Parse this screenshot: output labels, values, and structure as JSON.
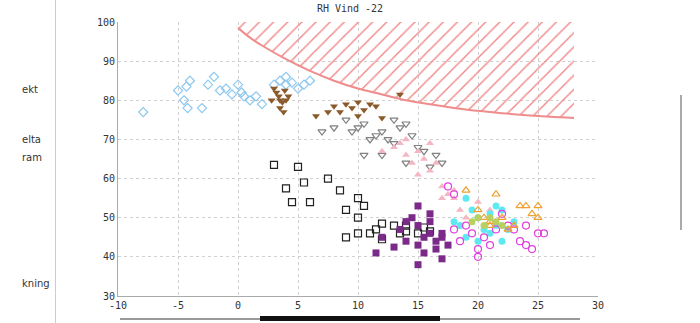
{
  "sidebar": [
    "ekt",
    "elta",
    "ram",
    "kning"
  ],
  "chart_data": {
    "type": "scatter",
    "title": "RH Vind -22",
    "xlim": [
      -10,
      30
    ],
    "xticks": [
      -10,
      -5,
      0,
      5,
      10,
      15,
      20,
      25,
      30
    ],
    "ylim": [
      30,
      100
    ],
    "yticks": [
      30,
      40,
      50,
      60,
      70,
      80,
      90,
      100
    ],
    "grid": true,
    "series": [
      {
        "type": "area",
        "color": "#f08c8c",
        "x": [
          0,
          1,
          2,
          4,
          6,
          8,
          10,
          12,
          14,
          16,
          18,
          20,
          22,
          24,
          26,
          28
        ],
        "values": [
          98.5,
          96,
          94,
          90.5,
          87.5,
          85,
          83,
          81.5,
          80,
          79,
          78,
          77.3,
          76.7,
          76.2,
          75.8,
          75.5
        ]
      },
      {
        "color": "#8ec8f0",
        "marker": "diamond-open",
        "x": [
          -7.9,
          -5,
          -4.5,
          -4.3,
          -4,
          -4.2,
          -3,
          -2.5,
          -2,
          -1.5,
          -1,
          -0.5,
          0,
          0.3,
          0.5,
          1,
          1.5,
          2,
          3,
          3.5,
          4,
          4,
          4.5,
          5,
          5.5,
          6
        ],
        "values": [
          77,
          82.5,
          80,
          83.5,
          85,
          78,
          78,
          84,
          86,
          82.5,
          83,
          81.5,
          84,
          82,
          81,
          80,
          81,
          79,
          84,
          85,
          84,
          86,
          84.5,
          83,
          84,
          85
        ]
      },
      {
        "color": "#8b5a2b",
        "marker": "triangle-down",
        "x": [
          3,
          3.2,
          3.4,
          3.5,
          3.7,
          3.5,
          3.8,
          3.9,
          4.2,
          4,
          2.8,
          6.5,
          7.5,
          8,
          8.5,
          9,
          9.5,
          10,
          10.5,
          11,
          11.5,
          12,
          13.5,
          10
        ],
        "values": [
          83,
          82,
          81,
          80,
          79.5,
          78,
          77,
          82.5,
          81,
          80,
          80,
          76,
          77,
          78.5,
          77,
          79,
          78,
          79.5,
          77.5,
          79,
          78.5,
          75.5,
          81.5,
          76
        ]
      },
      {
        "color": "#808080",
        "marker": "triangle-down-open",
        "x": [
          7,
          8,
          9,
          9.5,
          10,
          10.5,
          11,
          11.5,
          12,
          12.5,
          13,
          13.5,
          14,
          14.5,
          15,
          15.5,
          13,
          12,
          10.5,
          14,
          16,
          16.5,
          17
        ],
        "values": [
          72,
          73,
          75,
          72,
          73,
          74,
          70,
          71,
          72,
          70,
          69,
          73,
          74,
          71,
          68,
          67,
          75,
          66,
          66,
          64,
          63,
          66,
          64
        ]
      },
      {
        "color": "#f4b6c2",
        "marker": "triangle-up",
        "x": [
          12,
          13,
          13.5,
          14,
          14.5,
          15,
          15.5,
          16,
          16.5,
          17,
          17.5,
          18,
          16,
          17,
          18.5,
          19,
          20,
          14,
          15,
          18,
          21
        ],
        "values": [
          67,
          68,
          69,
          66,
          64,
          67,
          65,
          62,
          64,
          58,
          56,
          55,
          69,
          55,
          52,
          50,
          54,
          70,
          61,
          57,
          52
        ]
      },
      {
        "color": "#222222",
        "marker": "square-open",
        "x": [
          3,
          4,
          5,
          4.5,
          5.5,
          6,
          7.5,
          8.5,
          9,
          10,
          10,
          10.5,
          10,
          9,
          11,
          11.5,
          12,
          13,
          13.5,
          14,
          15,
          15.5,
          16,
          14,
          12
        ],
        "values": [
          63.5,
          57.5,
          63,
          54,
          59,
          54,
          60,
          57,
          52,
          55,
          50,
          53,
          46,
          45,
          46,
          47,
          44.5,
          48,
          46,
          46.5,
          46,
          47.5,
          46.5,
          48,
          48.5
        ]
      },
      {
        "color": "#7b2a8a",
        "marker": "square",
        "x": [
          11.5,
          12,
          13,
          13.5,
          14,
          14.5,
          15,
          15,
          15.5,
          15.5,
          15,
          16,
          16,
          16.5,
          16.5,
          17,
          17,
          17.5,
          17,
          14,
          15,
          16
        ],
        "values": [
          41,
          45,
          42.5,
          47,
          44,
          50,
          53,
          48,
          45,
          41,
          38,
          51,
          46,
          42,
          44,
          39.5,
          46,
          43,
          45,
          49,
          43,
          49
        ]
      },
      {
        "color": "#5ee8f0",
        "marker": "circle",
        "x": [
          18,
          18.5,
          19,
          19.5,
          20,
          20.5,
          21,
          21,
          21.5,
          22,
          22.5,
          23,
          20,
          19,
          22,
          21.5
        ],
        "values": [
          49,
          48,
          55,
          52,
          50,
          47,
          51,
          46,
          48,
          44,
          47,
          49,
          44,
          45,
          52,
          53
        ]
      },
      {
        "color": "#e040e0",
        "marker": "circle-open",
        "x": [
          17.5,
          18,
          18.5,
          19,
          19.5,
          20,
          20.5,
          21,
          21.5,
          22,
          22.5,
          23,
          23.5,
          24,
          24.5,
          25,
          25.5,
          24,
          18,
          20
        ],
        "values": [
          58,
          47,
          44,
          48,
          46,
          40,
          45,
          43,
          47,
          51,
          48,
          47,
          44,
          43,
          42,
          46,
          46,
          48,
          56,
          42
        ]
      },
      {
        "color": "#f0a030",
        "marker": "triangle-up-open",
        "x": [
          19,
          20,
          20.5,
          21,
          21.5,
          22,
          22.5,
          23,
          24,
          24.5,
          25,
          25,
          23.5,
          21
        ],
        "values": [
          57,
          52,
          50,
          49,
          56,
          50,
          47,
          48,
          53,
          51,
          50,
          53,
          53,
          48
        ]
      },
      {
        "color": "#b8d060",
        "marker": "circle",
        "x": [
          19.5,
          20,
          20.5,
          21,
          21.5,
          22
        ],
        "values": [
          49,
          50,
          48,
          50,
          49,
          48
        ]
      }
    ]
  }
}
